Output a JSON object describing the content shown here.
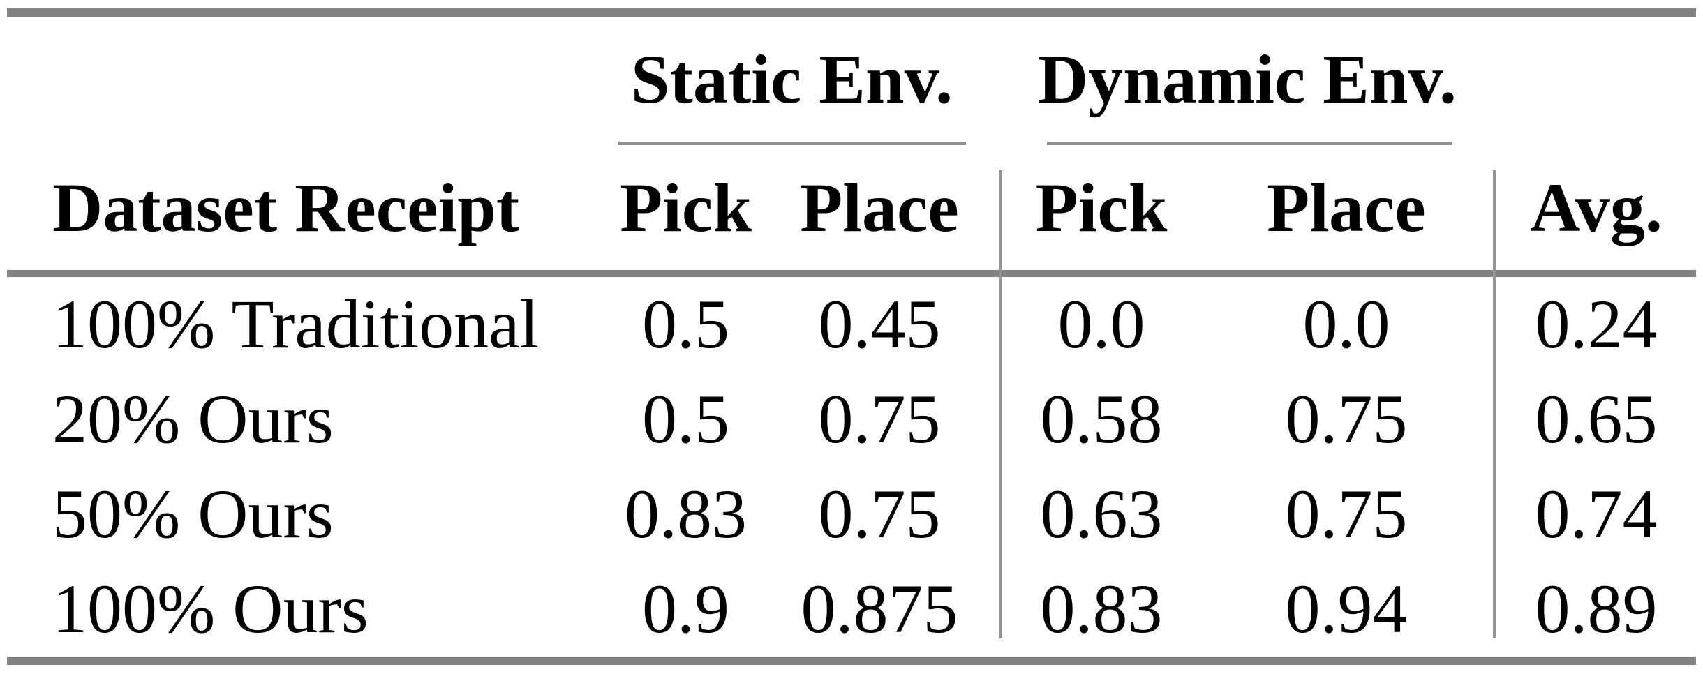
{
  "table": {
    "col_groups": [
      {
        "label": "Static Env."
      },
      {
        "label": "Dynamic Env."
      }
    ],
    "columns": [
      "Dataset Receipt",
      "Pick",
      "Place",
      "Pick",
      "Place",
      "Avg."
    ],
    "rows": [
      {
        "label": "100% Traditional",
        "values": [
          "0.5",
          "0.45",
          "0.0",
          "0.0",
          "0.24"
        ]
      },
      {
        "label": "20% Ours",
        "values": [
          "0.5",
          "0.75",
          "0.58",
          "0.75",
          "0.65"
        ]
      },
      {
        "label": "50% Ours",
        "values": [
          "0.83",
          "0.75",
          "0.63",
          "0.75",
          "0.74"
        ]
      },
      {
        "label": "100% Ours",
        "values": [
          "0.9",
          "0.875",
          "0.83",
          "0.94",
          "0.89"
        ]
      }
    ],
    "colors": {
      "text": "#000000",
      "thick_rule": "#828282",
      "thin_rule": "#8f8f8f",
      "separator": "#949494",
      "background": "#ffffff"
    }
  }
}
